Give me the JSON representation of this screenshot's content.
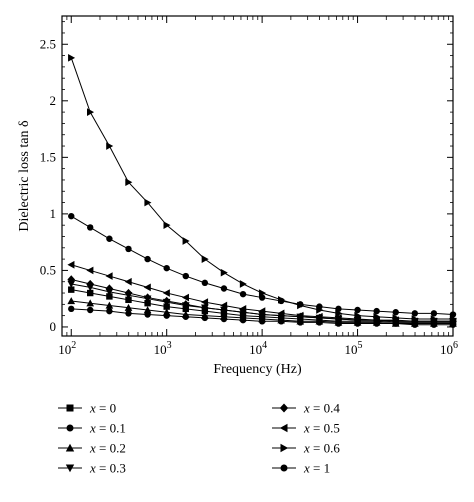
{
  "chart_data": {
    "type": "line",
    "title": "",
    "xlabel": "Frequency (Hz)",
    "ylabel": "Dielectric loss tan δ",
    "x_scale": "log",
    "xlim": [
      80,
      1000000
    ],
    "ylim": [
      -0.08,
      2.75
    ],
    "x_ticks": [
      {
        "value": 100,
        "base": "10",
        "exp": "2"
      },
      {
        "value": 1000,
        "base": "10",
        "exp": "3"
      },
      {
        "value": 10000,
        "base": "10",
        "exp": "4"
      },
      {
        "value": 100000,
        "base": "10",
        "exp": "5"
      },
      {
        "value": 1000000,
        "base": "10",
        "exp": "6"
      }
    ],
    "y_ticks": [
      {
        "value": 0,
        "label": "0"
      },
      {
        "value": 0.5,
        "label": "0.5"
      },
      {
        "value": 1,
        "label": "1"
      },
      {
        "value": 1.5,
        "label": "1.5"
      },
      {
        "value": 2,
        "label": "2"
      },
      {
        "value": 2.5,
        "label": "2.5"
      }
    ],
    "grid": false,
    "legend_position": "bottom",
    "x": [
      100,
      158,
      251,
      398,
      631,
      1000,
      1585,
      2512,
      3981,
      6310,
      10000,
      15849,
      25119,
      39811,
      63096,
      100000,
      158489,
      251189,
      398107,
      630957,
      1000000
    ],
    "series": [
      {
        "name": "x = 0",
        "marker": "square",
        "values": [
          0.33,
          0.3,
          0.27,
          0.24,
          0.21,
          0.18,
          0.16,
          0.14,
          0.12,
          0.1,
          0.09,
          0.08,
          0.07,
          0.06,
          0.05,
          0.05,
          0.05,
          0.04,
          0.04,
          0.04,
          0.04
        ]
      },
      {
        "name": "x = 0.1",
        "marker": "circle",
        "values": [
          0.16,
          0.15,
          0.14,
          0.12,
          0.11,
          0.1,
          0.09,
          0.08,
          0.07,
          0.06,
          0.05,
          0.05,
          0.04,
          0.04,
          0.03,
          0.03,
          0.03,
          0.03,
          0.02,
          0.02,
          0.02
        ]
      },
      {
        "name": "x = 0.2",
        "marker": "triangle-up",
        "values": [
          0.23,
          0.21,
          0.19,
          0.17,
          0.15,
          0.13,
          0.11,
          0.1,
          0.09,
          0.08,
          0.07,
          0.06,
          0.05,
          0.05,
          0.04,
          0.04,
          0.04,
          0.03,
          0.03,
          0.03,
          0.03
        ]
      },
      {
        "name": "x = 0.3",
        "marker": "triangle-down",
        "values": [
          0.38,
          0.35,
          0.31,
          0.28,
          0.25,
          0.22,
          0.19,
          0.17,
          0.15,
          0.13,
          0.11,
          0.1,
          0.09,
          0.08,
          0.07,
          0.06,
          0.06,
          0.05,
          0.05,
          0.05,
          0.05
        ]
      },
      {
        "name": "x = 0.4",
        "marker": "diamond",
        "values": [
          0.42,
          0.38,
          0.34,
          0.3,
          0.26,
          0.23,
          0.2,
          0.17,
          0.15,
          0.13,
          0.11,
          0.1,
          0.09,
          0.08,
          0.07,
          0.06,
          0.06,
          0.05,
          0.05,
          0.05,
          0.05
        ]
      },
      {
        "name": "x = 0.5",
        "marker": "triangle-left",
        "values": [
          0.55,
          0.5,
          0.45,
          0.4,
          0.35,
          0.3,
          0.26,
          0.22,
          0.19,
          0.16,
          0.14,
          0.12,
          0.1,
          0.09,
          0.08,
          0.07,
          0.06,
          0.06,
          0.05,
          0.05,
          0.05
        ]
      },
      {
        "name": "x = 0.6",
        "marker": "triangle-right",
        "values": [
          2.38,
          1.9,
          1.6,
          1.28,
          1.1,
          0.9,
          0.76,
          0.6,
          0.48,
          0.38,
          0.3,
          0.24,
          0.19,
          0.15,
          0.12,
          0.1,
          0.09,
          0.08,
          0.07,
          0.07,
          0.07
        ]
      },
      {
        "name": "x = 1",
        "marker": "circle",
        "values": [
          0.98,
          0.88,
          0.78,
          0.69,
          0.6,
          0.52,
          0.45,
          0.39,
          0.34,
          0.29,
          0.26,
          0.23,
          0.2,
          0.18,
          0.16,
          0.15,
          0.14,
          0.13,
          0.12,
          0.12,
          0.11
        ]
      }
    ]
  }
}
